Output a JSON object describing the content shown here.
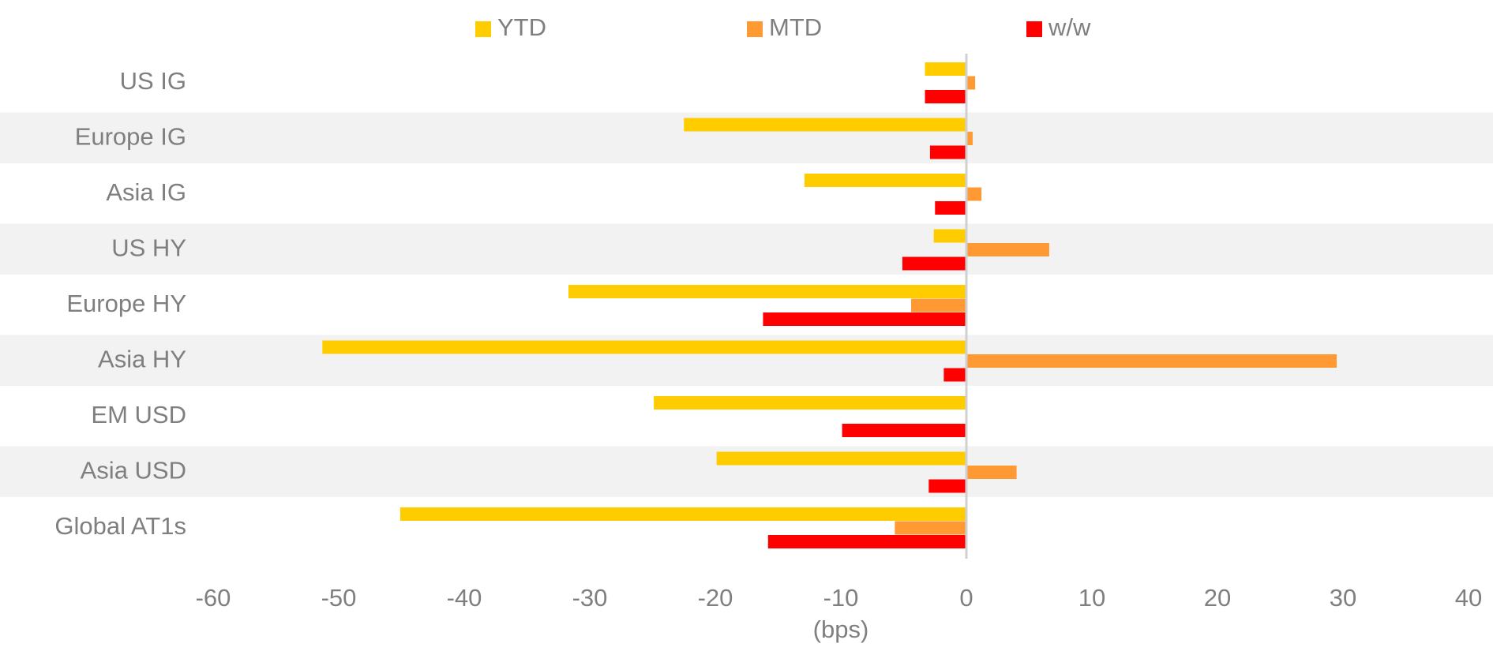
{
  "chart_data": {
    "type": "bar",
    "orientation": "horizontal",
    "categories": [
      "US IG",
      "Europe IG",
      "Asia IG",
      "US HY",
      "Europe HY",
      "Asia HY",
      "EM USD",
      "Asia USD",
      "Global AT1s"
    ],
    "series": [
      {
        "name": "YTD",
        "color": "#ffcc00",
        "values": [
          -3.3,
          -22.5,
          -12.9,
          -2.6,
          -31.7,
          -51.3,
          -24.9,
          -19.9,
          -45.1
        ]
      },
      {
        "name": "MTD",
        "color": "#ff9933",
        "values": [
          0.7,
          0.5,
          1.2,
          6.6,
          -4.4,
          29.5,
          0,
          4.0,
          -5.7
        ]
      },
      {
        "name": "w/w",
        "color": "#ff0000",
        "values": [
          -3.3,
          -2.9,
          -2.5,
          -5.1,
          -16.2,
          -1.8,
          -9.9,
          -3.0,
          -15.8
        ]
      }
    ],
    "xlabel": "(bps)",
    "ylabel": "",
    "xlim": [
      -60,
      40
    ],
    "xticks": [
      "-60",
      "-50",
      "-40",
      "-30",
      "-20",
      "-10",
      "0",
      "10",
      "20",
      "30",
      "40"
    ],
    "legend_position": "top",
    "grid": false,
    "alternating_row_shading": "#f2f2f2"
  }
}
